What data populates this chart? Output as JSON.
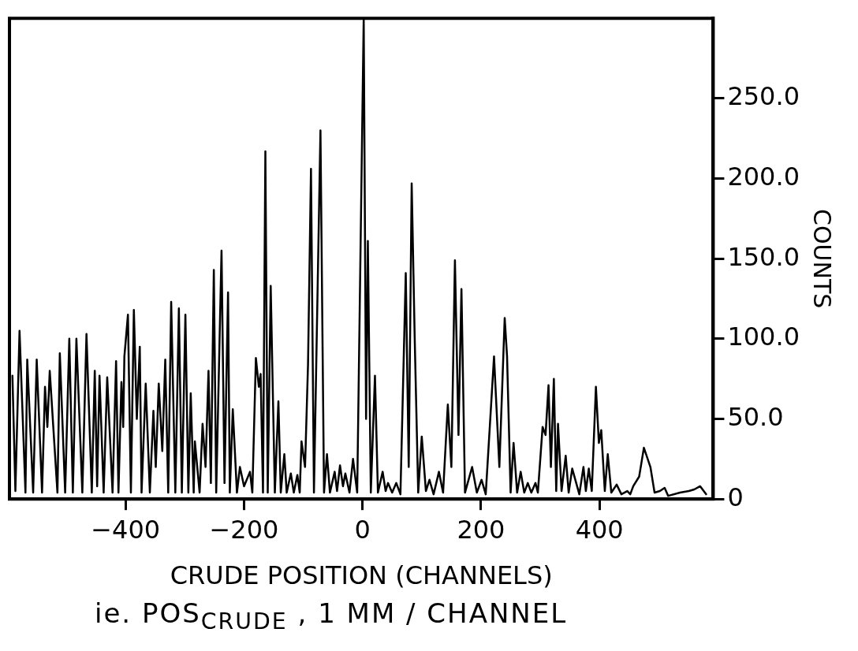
{
  "chart_data": {
    "type": "line",
    "xlabel": "CRUDE POSITION (CHANNELS)",
    "ylabel": "COUNTS",
    "annotations": [
      "ie. POS$_{CRUDE}$ , 1 MM / CHANNEL"
    ],
    "xlim": [
      -596,
      592
    ],
    "xticks": [
      -400,
      -200,
      0,
      200,
      400
    ],
    "ylim": [
      0,
      300
    ],
    "yticks": [
      0,
      {
        "value": 50,
        "label": "50.0"
      },
      {
        "value": 100,
        "label": "100.0"
      },
      {
        "value": 150,
        "label": "150.0"
      },
      {
        "value": 200,
        "label": "200.0"
      },
      {
        "value": 250,
        "label": "250.0"
      }
    ],
    "grid": false,
    "marker": "none",
    "line_style": "solid",
    "series": [
      {
        "color": "#000000",
        "x": [
          -591,
          -586,
          -579,
          -569,
          -566,
          -556,
          -550,
          -541,
          -536,
          -532,
          -528,
          -515,
          -511,
          -502,
          -495,
          -489,
          -483,
          -473,
          -466,
          -457,
          -452,
          -448,
          -444,
          -437,
          -431,
          -422,
          -416,
          -412,
          -407,
          -404,
          -402,
          -396,
          -391,
          -386,
          -381,
          -376,
          -373,
          -366,
          -359,
          -353,
          -349,
          -344,
          -338,
          -333,
          -328,
          -323,
          -316,
          -310,
          -305,
          -299,
          -294,
          -290,
          -285,
          -283,
          -275,
          -270,
          -265,
          -260,
          -256,
          -251,
          -247,
          -238,
          -233,
          -227,
          -224,
          -219,
          -212,
          -207,
          -200,
          -190,
          -186,
          -180,
          -175,
          -172,
          -168,
          -164,
          -160,
          -155,
          -148,
          -142,
          -138,
          -132,
          -128,
          -121,
          -116,
          -110,
          -106,
          -103,
          -97,
          -92,
          -87,
          -82,
          -71,
          -65,
          -60,
          -55,
          -47,
          -43,
          -38,
          -33,
          -29,
          -22,
          -16,
          -9,
          2,
          6,
          9,
          14,
          21,
          26,
          34,
          39,
          43,
          50,
          57,
          64,
          73,
          78,
          83,
          88,
          94,
          100,
          107,
          113,
          120,
          129,
          136,
          144,
          150,
          156,
          162,
          167,
          173,
          185,
          193,
          201,
          208,
          222,
          231,
          240,
          244,
          250,
          255,
          261,
          267,
          273,
          279,
          285,
          292,
          296,
          304,
          309,
          314,
          318,
          323,
          327,
          330,
          336,
          343,
          348,
          354,
          366,
          373,
          377,
          382,
          387,
          394,
          399,
          403,
          409,
          414,
          420,
          429,
          437,
          447,
          452,
          457,
          467,
          475,
          486,
          493,
          502,
          510,
          516,
          536,
          551,
          560,
          570,
          580
        ],
        "values": [
          77,
          5,
          105,
          4,
          87,
          4,
          87,
          4,
          70,
          45,
          80,
          4,
          91,
          4,
          100,
          4,
          100,
          4,
          103,
          4,
          80,
          8,
          77,
          4,
          76,
          4,
          86,
          4,
          73,
          45,
          89,
          115,
          4,
          118,
          50,
          95,
          4,
          72,
          4,
          55,
          20,
          72,
          30,
          87,
          4,
          123,
          4,
          119,
          4,
          115,
          4,
          66,
          4,
          36,
          4,
          47,
          20,
          80,
          10,
          143,
          4,
          155,
          10,
          129,
          4,
          56,
          4,
          20,
          8,
          17,
          4,
          88,
          70,
          78,
          4,
          217,
          4,
          133,
          4,
          61,
          4,
          28,
          4,
          16,
          4,
          15,
          4,
          36,
          20,
          84,
          206,
          4,
          230,
          4,
          28,
          4,
          17,
          5,
          21,
          8,
          16,
          4,
          25,
          4,
          300,
          50,
          161,
          4,
          77,
          4,
          17,
          5,
          10,
          4,
          10,
          3,
          141,
          20,
          197,
          102,
          4,
          39,
          5,
          12,
          3,
          17,
          4,
          59,
          20,
          149,
          40,
          131,
          4,
          20,
          4,
          12,
          3,
          89,
          20,
          113,
          89,
          4,
          35,
          4,
          17,
          4,
          10,
          4,
          10,
          4,
          45,
          40,
          71,
          20,
          75,
          5,
          47,
          5,
          27,
          4,
          19,
          3,
          20,
          5,
          19,
          5,
          70,
          35,
          43,
          5,
          28,
          4,
          9,
          3,
          5,
          3,
          8,
          14,
          32,
          20,
          4,
          5,
          7,
          2,
          4,
          5,
          6,
          8,
          3
        ]
      }
    ]
  }
}
